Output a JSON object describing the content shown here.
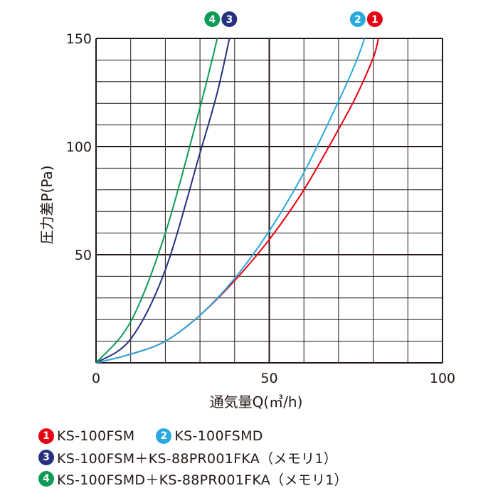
{
  "chart_data": {
    "type": "line",
    "xlabel": "通気量Q(㎥/h)",
    "ylabel": "圧力差P(Pa)",
    "xlim": [
      0,
      100
    ],
    "ylim": [
      0,
      150
    ],
    "x_ticks": [
      "0",
      "50",
      "100"
    ],
    "y_ticks": [
      "50",
      "100",
      "150"
    ],
    "grid": true,
    "series": [
      {
        "id": "1",
        "name": "KS-100FSM",
        "color": "#e60012",
        "points": [
          [
            0,
            0
          ],
          [
            10,
            4
          ],
          [
            20,
            10
          ],
          [
            30,
            22
          ],
          [
            40,
            38
          ],
          [
            50,
            57
          ],
          [
            60,
            80
          ],
          [
            70,
            108
          ],
          [
            75,
            123
          ],
          [
            80,
            141
          ],
          [
            81.5,
            150
          ]
        ]
      },
      {
        "id": "2",
        "name": "KS-100FSMD",
        "color": "#29a9e0",
        "points": [
          [
            0,
            0
          ],
          [
            10,
            4
          ],
          [
            20,
            10
          ],
          [
            30,
            22
          ],
          [
            40,
            39
          ],
          [
            50,
            61
          ],
          [
            60,
            88
          ],
          [
            70,
            121
          ],
          [
            75,
            139
          ],
          [
            77.5,
            150
          ]
        ]
      },
      {
        "id": "3",
        "name": "KS-100FSM＋KS-88PR001FKA（メモリ1）",
        "color": "#26307f",
        "points": [
          [
            0,
            0
          ],
          [
            10,
            11
          ],
          [
            20,
            43
          ],
          [
            30,
            97
          ],
          [
            35,
            125
          ],
          [
            38.5,
            150
          ]
        ]
      },
      {
        "id": "4",
        "name": "KS-100FSMD＋KS-88PR001FKA（メモリ1）",
        "color": "#0d9b55",
        "points": [
          [
            0,
            0
          ],
          [
            10,
            19
          ],
          [
            20,
            60
          ],
          [
            30,
            118
          ],
          [
            35,
            150
          ]
        ]
      }
    ],
    "top_labels": [
      {
        "ids": [
          "4",
          "3"
        ],
        "x": 36
      },
      {
        "ids": [
          "2",
          "1"
        ],
        "x": 78
      }
    ]
  }
}
